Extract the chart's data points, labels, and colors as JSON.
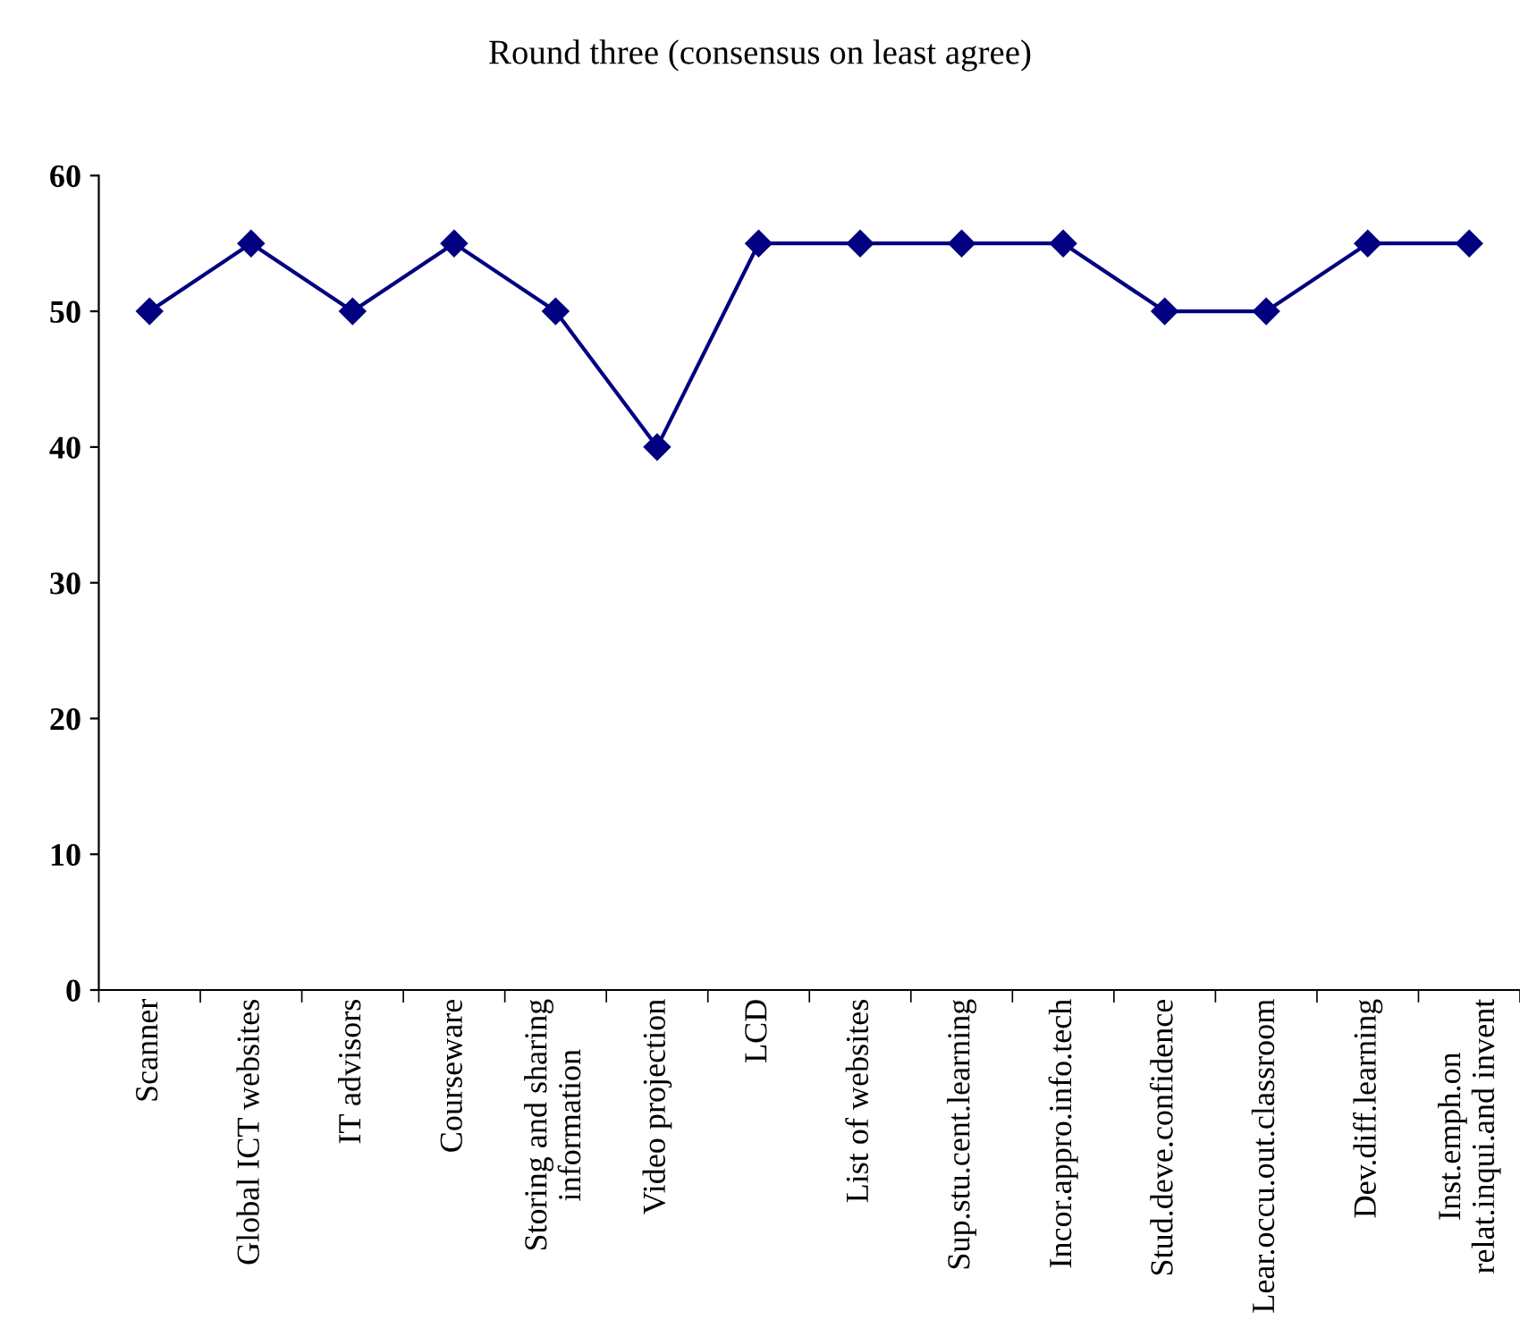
{
  "chart_data": {
    "type": "line",
    "title": "Round three (consensus on least agree)",
    "categories": [
      "Scanner",
      "Global ICT websites",
      "IT advisors",
      "Courseware",
      "Storing and sharing\ninformation",
      "Video projection",
      "LCD",
      "List of websites",
      "Sup.stu.cent.learning",
      "Incor.appro.info.tech",
      "Stud.deve.confidence",
      "Lear.occu.out.classroom",
      "Dev.diff.learning",
      "Inst.emph.on\nrelat.inqui.and invent"
    ],
    "values": [
      50,
      55,
      50,
      55,
      50,
      40,
      55,
      55,
      55,
      55,
      50,
      50,
      55,
      55
    ],
    "color": "#000080",
    "marker": "diamond",
    "line_style": "solid",
    "ylim": [
      0,
      60
    ],
    "yticks": [
      0,
      10,
      20,
      30,
      40,
      50,
      60
    ],
    "grid": false,
    "legend": false
  }
}
